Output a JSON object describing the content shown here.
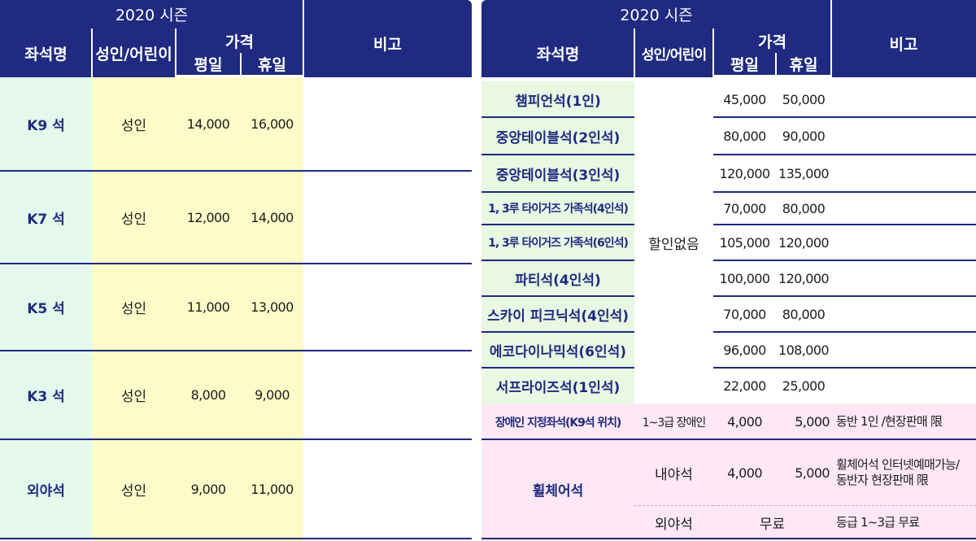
{
  "left": {
    "season": "2020 시즌",
    "headers": {
      "seat": "좌석명",
      "age": "성인/어린이",
      "price": "가격",
      "weekday": "평일",
      "holiday": "휴일",
      "note": "비고"
    },
    "rows": [
      {
        "seat": "K9 석",
        "age": "성인",
        "weekday": "14,000",
        "holiday": "16,000"
      },
      {
        "seat": "K7 석",
        "age": "성인",
        "weekday": "12,000",
        "holiday": "14,000"
      },
      {
        "seat": "K5 석",
        "age": "성인",
        "weekday": "11,000",
        "holiday": "13,000"
      },
      {
        "seat": "K3 석",
        "age": "성인",
        "weekday": "8,000",
        "holiday": "9,000"
      },
      {
        "seat": "외야석",
        "age": "성인",
        "weekday": "9,000",
        "holiday": "11,000"
      }
    ]
  },
  "right": {
    "season": "2020 시즌",
    "headers": {
      "seat": "좌석명",
      "age": "성인/어린이",
      "price": "가격",
      "weekday": "평일",
      "holiday": "휴일",
      "note": "비고"
    },
    "no_discount": "할인없음",
    "rows": [
      {
        "seat": "챔피언석(1인)",
        "weekday": "45,000",
        "holiday": "50,000"
      },
      {
        "seat": "중앙테이블석(2인석)",
        "weekday": "80,000",
        "holiday": "90,000"
      },
      {
        "seat": "중앙테이블석(3인석)",
        "weekday": "120,000",
        "holiday": "135,000"
      },
      {
        "seat": "1, 3루 타이거즈 가족석(4인석)",
        "weekday": "70,000",
        "holiday": "80,000"
      },
      {
        "seat": "1, 3루 타이거즈 가족석(6인석)",
        "weekday": "105,000",
        "holiday": "120,000"
      },
      {
        "seat": "파티석(4인석)",
        "weekday": "100,000",
        "holiday": "120,000"
      },
      {
        "seat": "스카이 피크닉석(4인석)",
        "weekday": "70,000",
        "holiday": "80,000"
      },
      {
        "seat": "에코다이나믹석(6인석)",
        "weekday": "96,000",
        "holiday": "108,000"
      },
      {
        "seat": "서프라이즈석(1인석)",
        "weekday": "22,000",
        "holiday": "25,000"
      }
    ],
    "disabled": {
      "seat": "장애인 지정좌석(K9석 위치)",
      "age": "1~3급 장애인",
      "weekday": "4,000",
      "holiday": "5,000",
      "note": "동반 1인 /현장판매 限"
    },
    "wheelchair": {
      "seat": "휠체어석",
      "inner": {
        "age": "내야석",
        "weekday": "4,000",
        "holiday": "5,000",
        "note_line1": "휠체어석 인터넷예매가능/",
        "note_line2": "동반자 현장판매 限"
      },
      "outer": {
        "age": "외야석",
        "price": "무료",
        "note": "등급 1~3급 무료"
      }
    }
  }
}
